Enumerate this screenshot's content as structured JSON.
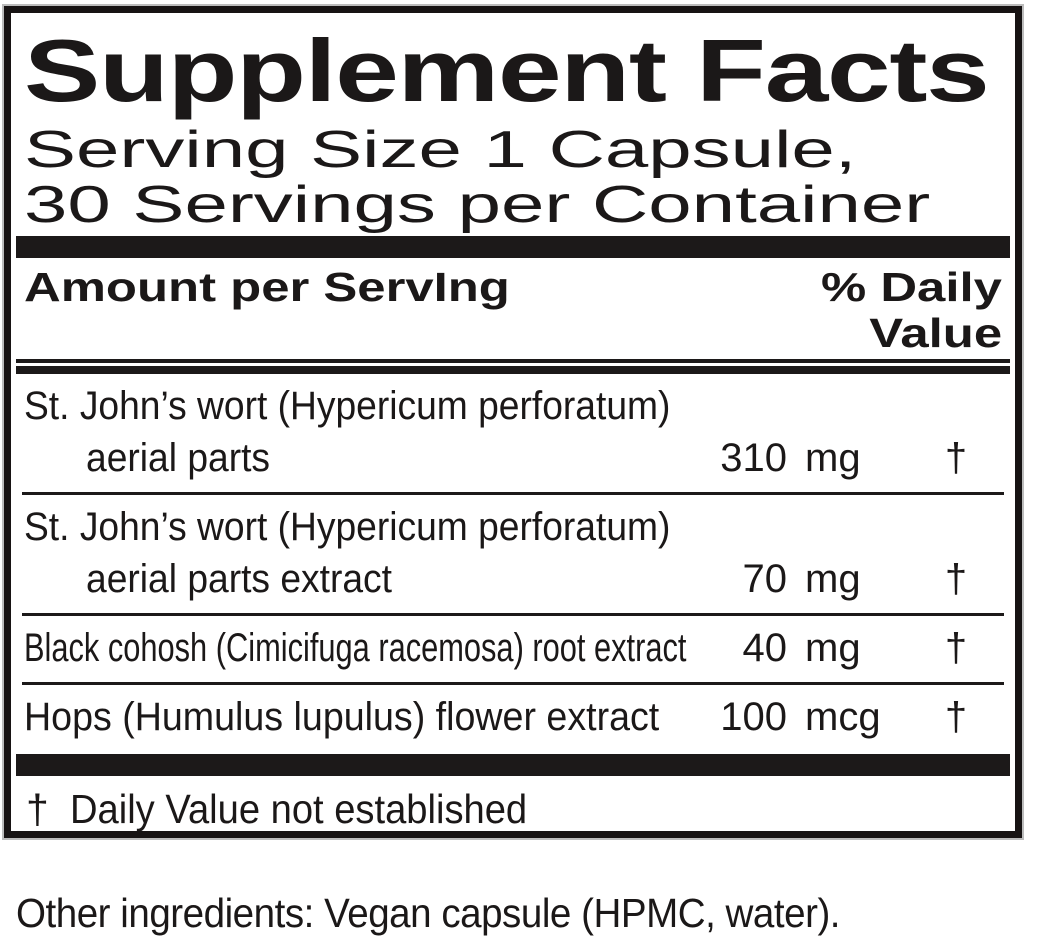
{
  "panel": {
    "title": "Supplement Facts",
    "serving_line1": "Serving Size 1 Capsule,",
    "serving_line2": "30 Servings per Container",
    "header": {
      "amount_label": "Amount per ServIng",
      "dv_line1": "% Daily",
      "dv_line2": "Value"
    },
    "rows": [
      {
        "name": "St. John’s wort (Hypericum perforatum)",
        "sub": "aerial parts",
        "amount": "310",
        "unit": "mg",
        "dv": "†"
      },
      {
        "name": "St. John’s wort (Hypericum perforatum)",
        "sub": "aerial parts extract",
        "amount": "70",
        "unit": "mg",
        "dv": "†"
      },
      {
        "name": "Black cohosh (Cimicifuga racemosa) root extract",
        "amount": "40",
        "unit": "mg",
        "dv": "†"
      },
      {
        "name": "Hops (Humulus lupulus) flower extract",
        "amount": "100",
        "unit": "mcg",
        "dv": "†"
      }
    ],
    "footnote": {
      "symbol": "†",
      "text": "Daily Value not established"
    },
    "other_ingredients": "Other ingredients: Vegan capsule (HPMC, water)."
  },
  "colors": {
    "ink": "#1b1818",
    "background": "#ffffff",
    "border": "#171313"
  }
}
